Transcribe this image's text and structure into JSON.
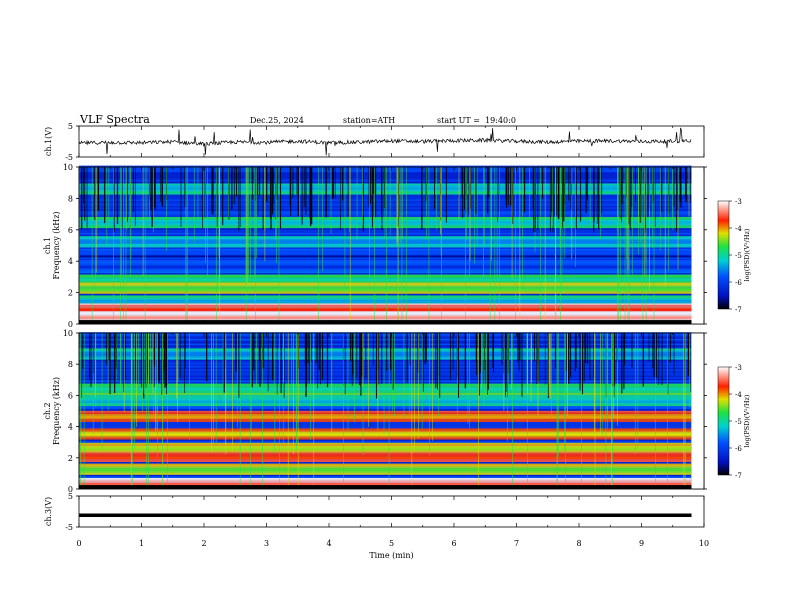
{
  "header": {
    "title": "VLF Spectra",
    "date": "Dec.25, 2024",
    "station": "station=ATH",
    "start": "start UT =  19:40:0"
  },
  "chart_data": [
    {
      "type": "line",
      "panel": "ch1-waveform",
      "ylabel": "ch.1(V)",
      "ylim": [
        -5,
        5
      ],
      "y_ticks": [
        "5",
        "-5"
      ],
      "x": [
        0,
        0.5,
        1,
        1.5,
        2,
        2.5,
        3,
        3.5,
        4,
        4.5,
        5,
        5.5,
        6,
        6.5,
        7,
        7.5,
        8,
        8.5,
        9,
        9.5,
        9.8
      ],
      "values": [
        -0.5,
        -0.3,
        -0.4,
        -0.1,
        -0.8,
        -0.2,
        -0.3,
        0.1,
        -0.4,
        -0.2,
        0.2,
        0.0,
        0.3,
        0.4,
        0.1,
        -0.2,
        0.1,
        0.2,
        0.0,
        0.1,
        0.3
      ]
    },
    {
      "type": "heatmap",
      "panel": "ch1-spectrogram",
      "ylabel": "Frequency (kHz)",
      "channel_label": "ch.1",
      "ylim": [
        0,
        10
      ],
      "y_ticks": [
        "0",
        "2",
        "4",
        "6",
        "8",
        "10"
      ],
      "colorbar": {
        "label": "log(PSD)(V²/Hz)",
        "range": [
          -7,
          -3
        ],
        "ticks": [
          "-3",
          "-4",
          "-5",
          "-6",
          "-7"
        ]
      },
      "bands_khz": [
        {
          "f": 0.4,
          "level": -3.4
        },
        {
          "f": 0.9,
          "level": -3.8
        },
        {
          "f": 1.4,
          "level": -5.6
        },
        {
          "f": 2.2,
          "level": -4.8
        },
        {
          "f": 2.8,
          "level": -5.2
        },
        {
          "f": 3.6,
          "level": -6.3
        },
        {
          "f": 4.3,
          "level": -6.6
        },
        {
          "f": 5.2,
          "level": -5.8
        },
        {
          "f": 6.4,
          "level": -5.5
        },
        {
          "f": 8.6,
          "level": -5.6
        }
      ]
    },
    {
      "type": "heatmap",
      "panel": "ch2-spectrogram",
      "ylabel": "Frequency (kHz)",
      "channel_label": "ch.2",
      "ylim": [
        0,
        10
      ],
      "y_ticks": [
        "0",
        "2",
        "4",
        "6",
        "8",
        "10"
      ],
      "colorbar": {
        "label": "log(PSD)(V²/Hz)",
        "range": [
          -7,
          -3
        ],
        "ticks": [
          "-3",
          "-4",
          "-5",
          "-6",
          "-7"
        ]
      },
      "bands_khz": [
        {
          "f": 0.3,
          "level": -3.6
        },
        {
          "f": 1.2,
          "level": -4.8
        },
        {
          "f": 2.0,
          "level": -3.9
        },
        {
          "f": 2.6,
          "level": -4.6
        },
        {
          "f": 3.5,
          "level": -4.4
        },
        {
          "f": 4.6,
          "level": -4.2
        },
        {
          "f": 5.6,
          "level": -5.6
        },
        {
          "f": 6.4,
          "level": -5.3
        },
        {
          "f": 8.6,
          "level": -5.8
        }
      ]
    },
    {
      "type": "line",
      "panel": "ch3-waveform",
      "ylabel": "ch.3(V)",
      "ylim": [
        -5,
        5
      ],
      "y_ticks": [
        "5",
        "-5"
      ],
      "x": [
        0,
        9.8
      ],
      "values": [
        -1.2,
        -1.2
      ]
    }
  ],
  "x_axis": {
    "label": "Time (min)",
    "range": [
      0,
      10
    ],
    "ticks": [
      "0",
      "1",
      "2",
      "3",
      "4",
      "5",
      "6",
      "7",
      "8",
      "9",
      "10"
    ]
  }
}
